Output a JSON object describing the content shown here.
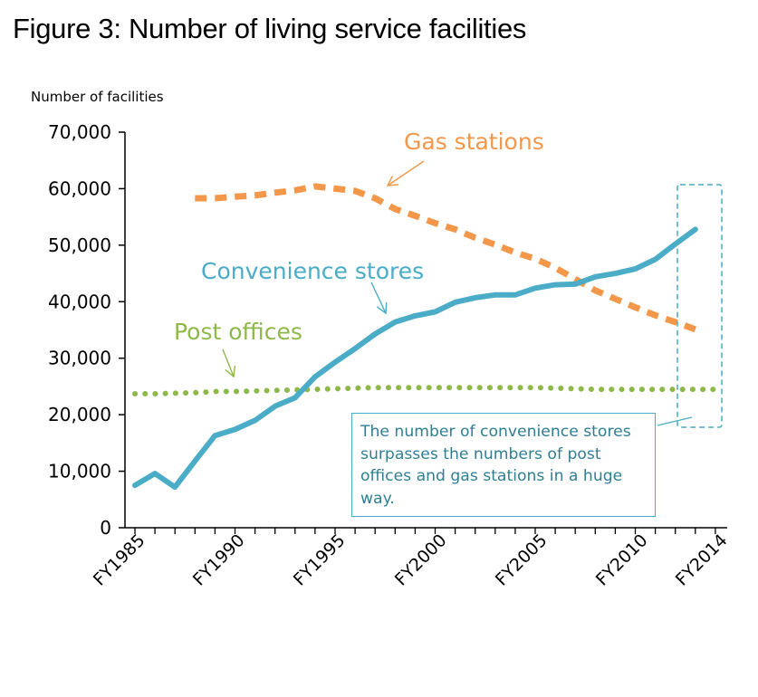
{
  "title": "Figure 3: Number of living service facilities",
  "colors": {
    "gas": "#f3984a",
    "convenience": "#4aacc6",
    "post": "#8fb84a",
    "axis": "#000000"
  },
  "chart_data": {
    "type": "line",
    "ylabel": "Number of facilities",
    "xlabel": "",
    "ylim": [
      0,
      70000
    ],
    "ytick_labels": [
      "0",
      "10,000",
      "20,000",
      "30,000",
      "40,000",
      "50,000",
      "60,000",
      "70,000"
    ],
    "xtick_labels": [
      "FY1985",
      "FY1990",
      "FY1995",
      "FY2000",
      "FY2005",
      "FY2010",
      "FY2014"
    ],
    "x": [
      1985,
      1986,
      1987,
      1988,
      1989,
      1990,
      1991,
      1992,
      1993,
      1994,
      1995,
      1996,
      1997,
      1998,
      1999,
      2000,
      2001,
      2002,
      2003,
      2004,
      2005,
      2006,
      2007,
      2008,
      2009,
      2010,
      2011,
      2012,
      2013,
      2014
    ],
    "series": [
      {
        "name": "Convenience stores",
        "key": "convenience",
        "style": "solid",
        "values": [
          7500,
          9600,
          7200,
          11800,
          16300,
          17400,
          19000,
          21500,
          23000,
          26700,
          29300,
          31700,
          34300,
          36400,
          37500,
          38200,
          39900,
          40700,
          41200,
          41200,
          42400,
          43000,
          43100,
          44400,
          45000,
          45800,
          47500,
          50200,
          52800,
          null
        ]
      },
      {
        "name": "Gas stations",
        "key": "gas",
        "style": "dashed",
        "values": [
          null,
          null,
          null,
          58300,
          58300,
          58600,
          58800,
          59300,
          59700,
          60400,
          60000,
          59600,
          58300,
          56400,
          55200,
          53900,
          52800,
          51300,
          50100,
          48700,
          47600,
          46000,
          44000,
          42000,
          40500,
          39000,
          37600,
          36400,
          35100,
          null
        ]
      },
      {
        "name": "Post offices",
        "key": "post",
        "style": "dotted",
        "values": [
          23700,
          23700,
          23800,
          23900,
          24100,
          24100,
          24200,
          24300,
          24400,
          24500,
          24600,
          24700,
          24800,
          24800,
          24800,
          24800,
          24800,
          24800,
          24800,
          24800,
          24800,
          24700,
          24600,
          24500,
          24500,
          24500,
          24500,
          24500,
          24500,
          24500
        ]
      }
    ],
    "annotation": "The number of convenience stores surpasses the numbers of post offices and gas stations in a huge way.",
    "grid": false,
    "legend": "inline labels"
  }
}
